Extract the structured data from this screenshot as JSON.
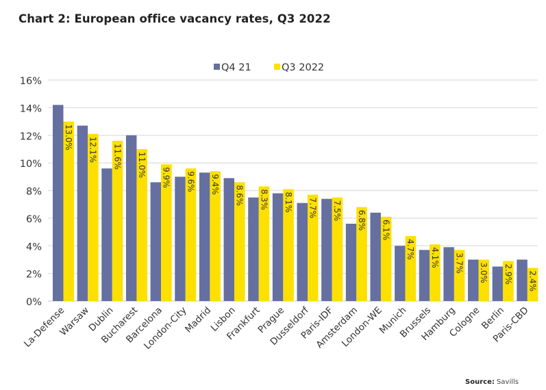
{
  "title": "Chart 2: European office vacancy rates, Q3 2022",
  "source": {
    "label": "Source:",
    "value": "Savills"
  },
  "chart_data": {
    "type": "bar",
    "title": "Chart 2: European office vacancy rates, Q3 2022",
    "xlabel": "",
    "ylabel": "",
    "ylim": [
      0,
      16
    ],
    "yticks": [
      0,
      2,
      4,
      6,
      8,
      10,
      12,
      14,
      16
    ],
    "ytick_labels": [
      "0%",
      "2%",
      "4%",
      "6%",
      "8%",
      "10%",
      "12%",
      "14%",
      "16%"
    ],
    "grid": true,
    "legend_position": "top-center",
    "categories": [
      "La-Defense",
      "Warsaw",
      "Dublin",
      "Bucharest",
      "Barcelona",
      "London-City",
      "Madrid",
      "Lisbon",
      "Frankfurt",
      "Prague",
      "Dusseldorf",
      "Paris-IDF",
      "Amsterdam",
      "London-WE",
      "Munich",
      "Brussels",
      "Hamburg",
      "Cologne",
      "Berlin",
      "Paris-CBD"
    ],
    "series": [
      {
        "name": "Q4 21",
        "color": "#6570a0",
        "values": [
          14.2,
          12.7,
          9.6,
          12.0,
          8.6,
          9.0,
          9.3,
          8.9,
          7.5,
          7.8,
          7.1,
          7.4,
          5.6,
          6.4,
          4.0,
          3.7,
          3.9,
          3.0,
          2.5,
          3.0
        ],
        "data_labels": false
      },
      {
        "name": "Q3 2022",
        "color": "#fde000",
        "values": [
          13.0,
          12.1,
          11.6,
          11.0,
          9.9,
          9.6,
          9.4,
          8.6,
          8.3,
          8.1,
          7.7,
          7.5,
          6.8,
          6.1,
          4.7,
          4.1,
          3.7,
          3.0,
          2.9,
          2.4
        ],
        "data_labels": true,
        "label_format": "{v}%"
      }
    ]
  }
}
